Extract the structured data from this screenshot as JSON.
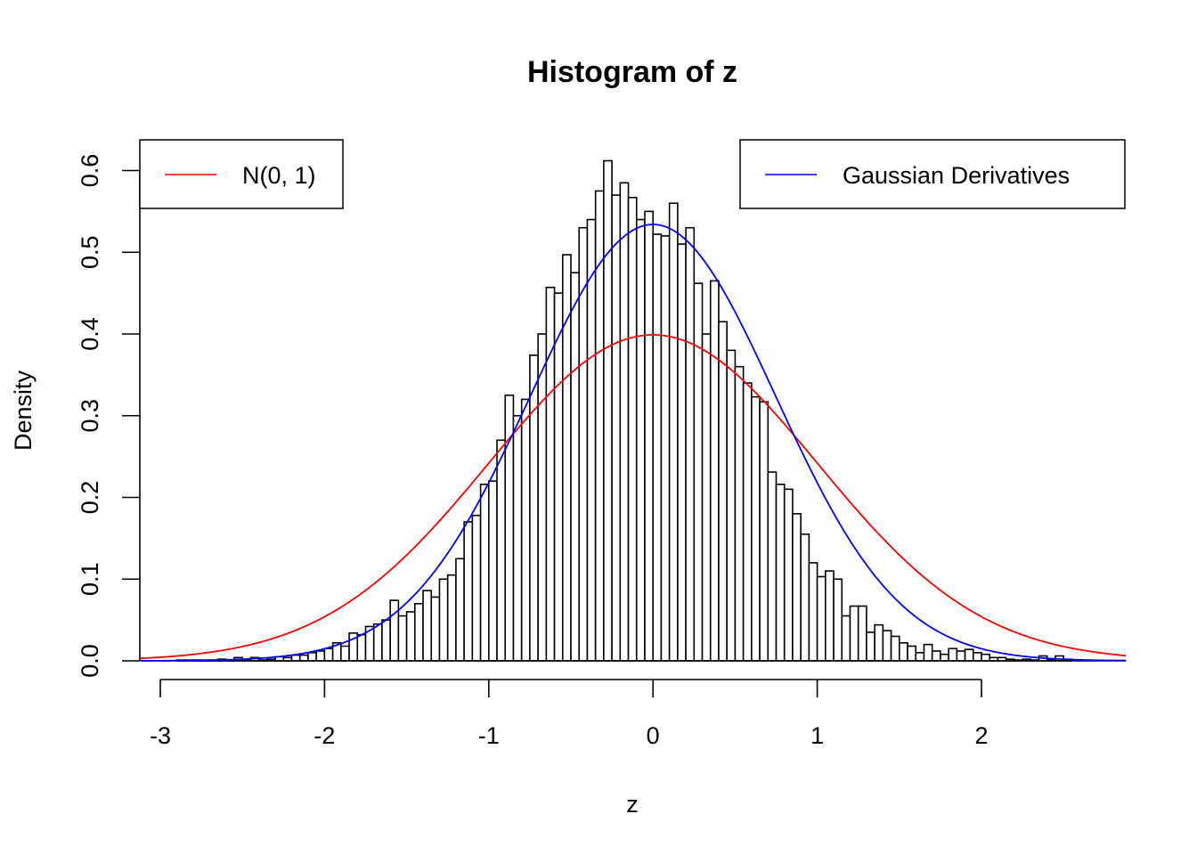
{
  "chart_data": {
    "type": "bar",
    "title": "Histogram of z",
    "xlabel": "z",
    "ylabel": "Density",
    "xlim": [
      -3.12,
      2.88
    ],
    "ylim": [
      0,
      0.6
    ],
    "x_ticks": [
      -3,
      -2,
      -1,
      0,
      1,
      2
    ],
    "x_tick_labels": [
      "-3",
      "-2",
      "-1",
      "0",
      "1",
      "2"
    ],
    "y_ticks": [
      0,
      0.1,
      0.2,
      0.3,
      0.4,
      0.5,
      0.6
    ],
    "y_tick_labels": [
      "0.0",
      "0.1",
      "0.2",
      "0.3",
      "0.4",
      "0.5",
      "0.6"
    ],
    "grid": false,
    "bin_start": -2.9,
    "bin_width": 0.05,
    "densities": [
      0.001,
      0.001,
      0.001,
      0.001,
      0.001,
      0.002,
      0.001,
      0.004,
      0.001,
      0.004,
      0.001,
      0.002,
      0.005,
      0.004,
      0.007,
      0.007,
      0.01,
      0.012,
      0.015,
      0.022,
      0.018,
      0.034,
      0.032,
      0.042,
      0.045,
      0.05,
      0.074,
      0.055,
      0.06,
      0.07,
      0.086,
      0.078,
      0.1,
      0.105,
      0.125,
      0.17,
      0.178,
      0.216,
      0.22,
      0.27,
      0.325,
      0.3,
      0.32,
      0.374,
      0.4,
      0.457,
      0.45,
      0.497,
      0.475,
      0.53,
      0.54,
      0.575,
      0.612,
      0.57,
      0.585,
      0.567,
      0.54,
      0.55,
      0.522,
      0.52,
      0.56,
      0.51,
      0.53,
      0.462,
      0.4,
      0.465,
      0.415,
      0.38,
      0.36,
      0.34,
      0.323,
      0.317,
      0.231,
      0.216,
      0.21,
      0.18,
      0.155,
      0.12,
      0.103,
      0.11,
      0.1,
      0.055,
      0.067,
      0.067,
      0.035,
      0.044,
      0.037,
      0.03,
      0.022,
      0.018,
      0.01,
      0.02,
      0.012,
      0.008,
      0.015,
      0.012,
      0.014,
      0.01,
      0.008,
      0.004,
      0.004,
      0.002,
      0.001,
      0.002,
      0.001,
      0.006,
      0.002,
      0.006,
      0.002
    ],
    "series": [
      {
        "name": "N(0, 1)",
        "color": "#ff0000",
        "mean": 0,
        "sd": 1
      },
      {
        "name": "Gaussian Derivatives",
        "color": "#0000ff",
        "mean": 0,
        "sd": 0.747
      }
    ],
    "legends": [
      {
        "position": "top-left",
        "entries": [
          {
            "label": "N(0, 1)",
            "color": "#ff0000"
          }
        ]
      },
      {
        "position": "top-right",
        "entries": [
          {
            "label": "Gaussian Derivatives",
            "color": "#0000ff"
          }
        ]
      }
    ]
  }
}
